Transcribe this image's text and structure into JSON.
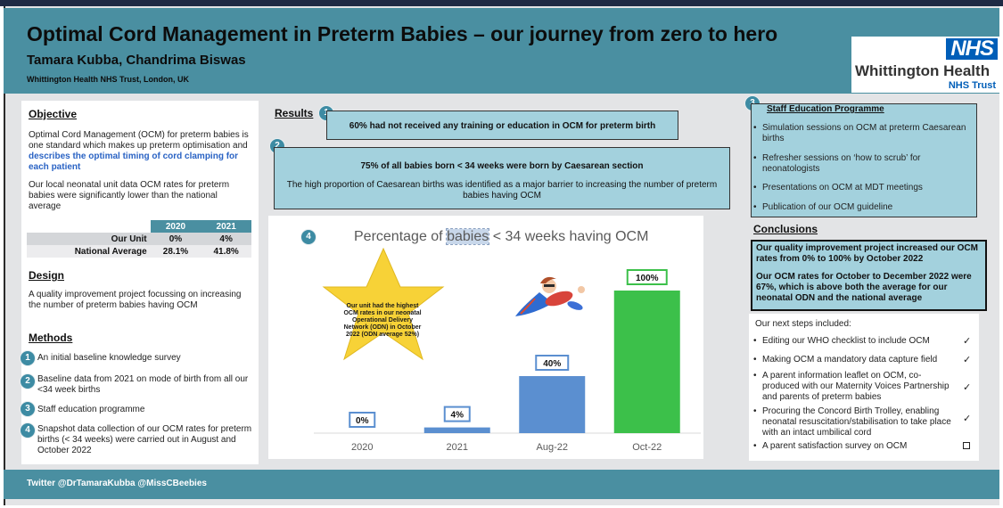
{
  "header": {
    "title": "Optimal Cord Management in Preterm Babies – our journey from zero to hero",
    "authors": "Tamara Kubba, Chandrima Biswas",
    "affiliation": "Whittington Health NHS Trust, London, UK",
    "logo": {
      "nhs": "NHS",
      "org": "Whittington Health",
      "trust": "NHS Trust"
    }
  },
  "objective": {
    "heading": "Objective",
    "text_plain": "Optimal Cord Management (OCM) for preterm babies is one standard which makes up preterm optimisation and",
    "text_accent": "describes the optimal timing of cord clamping for each patient",
    "local_data": "Our local neonatal unit data OCM rates for preterm babies were significantly lower than the national average",
    "table": {
      "columns": [
        "",
        "2020",
        "2021"
      ],
      "rows": [
        [
          "Our Unit",
          "0%",
          "4%"
        ],
        [
          "National Average",
          "28.1%",
          "41.8%"
        ]
      ]
    }
  },
  "design": {
    "heading": "Design",
    "text": "A quality improvement project focussing on increasing the number of preterm babies having OCM"
  },
  "methods": {
    "heading": "Methods",
    "items": [
      {
        "num": "1",
        "text": "An initial baseline knowledge survey"
      },
      {
        "num": "2",
        "text": "Baseline data from 2021 on mode of birth from all our <34 week births"
      },
      {
        "num": "3",
        "text": "Staff education programme"
      },
      {
        "num": "4",
        "text": "Snapshot data collection of our OCM rates for preterm births (< 34 weeks) were carried out in August and October 2022"
      }
    ]
  },
  "results": {
    "heading": "Results",
    "r1_num": "1",
    "r1": "60% had not received any training or education in OCM for preterm birth",
    "r2_num": "2",
    "r2_title": "75% of all babies born < 34 weeks were born by Caesarean section",
    "r2_text": "The high proportion of Caesarean births was identified as a major barrier to increasing the number of preterm babies having OCM",
    "r4_num": "4",
    "chart_title_a": "Percentage of",
    "chart_title_sel": "babies",
    "chart_title_b": "< 34 weeks having OCM",
    "star_text": "Our unit had the highest OCM rates in our neonatal Operational Delivery Network (ODN) in October 2022 (ODN average 52%)"
  },
  "chart_data": {
    "type": "bar",
    "title": "Percentage of babies < 34 weeks having OCM",
    "categories": [
      "2020",
      "2021",
      "Aug-22",
      "Oct-22"
    ],
    "values": [
      0,
      4,
      40,
      100
    ],
    "value_labels": [
      "0%",
      "4%",
      "40%",
      "100%"
    ],
    "bar_colors": [
      "#5b8fd0",
      "#5b8fd0",
      "#5b8fd0",
      "#3cc04a"
    ],
    "ylim": [
      0,
      100
    ],
    "grid": false,
    "xlabel": "",
    "ylabel": ""
  },
  "staff": {
    "num": "3",
    "heading": "Staff Education Programme",
    "items": [
      "Simulation sessions on OCM at preterm Caesarean births",
      "Refresher sessions on ‘how to scrub’ for neonatologists",
      "Presentations on OCM at MDT meetings",
      "Publication of our OCM guideline"
    ]
  },
  "conclusions": {
    "heading": "Conclusions",
    "p1": "Our quality improvement project increased our OCM rates from 0% to 100% by October 2022",
    "p2": "Our OCM rates for October to December 2022 were 67%, which is above both the average for our neonatal ODN and the national average",
    "next_intro": "Our next steps included:",
    "next_steps": [
      {
        "text": "Editing our WHO checklist to include OCM",
        "status": "done"
      },
      {
        "text": "Making OCM a mandatory data capture field",
        "status": "done"
      },
      {
        "text": "A parent information leaflet on OCM, co-produced with our Maternity Voices Partnership and parents of preterm babies",
        "status": "done"
      },
      {
        "text": "Procuring the Concord Birth Trolley, enabling neonatal resuscitation/stabilisation to take place with an intact umbilical cord",
        "status": "done"
      },
      {
        "text": "A parent satisfaction survey on OCM",
        "status": "pending"
      }
    ],
    "check_mark": "✓"
  },
  "footer": {
    "twitter": "Twitter @DrTamaraKubba @MissCBeebies"
  },
  "colors": {
    "teal": "#4a8fa1",
    "light_teal": "#a3d1dd",
    "accent_blue": "#2a63c4",
    "bar_blue": "#5b8fd0",
    "bar_green": "#3cc04a",
    "star": "#f7d237",
    "nhs_blue": "#005eb8"
  }
}
